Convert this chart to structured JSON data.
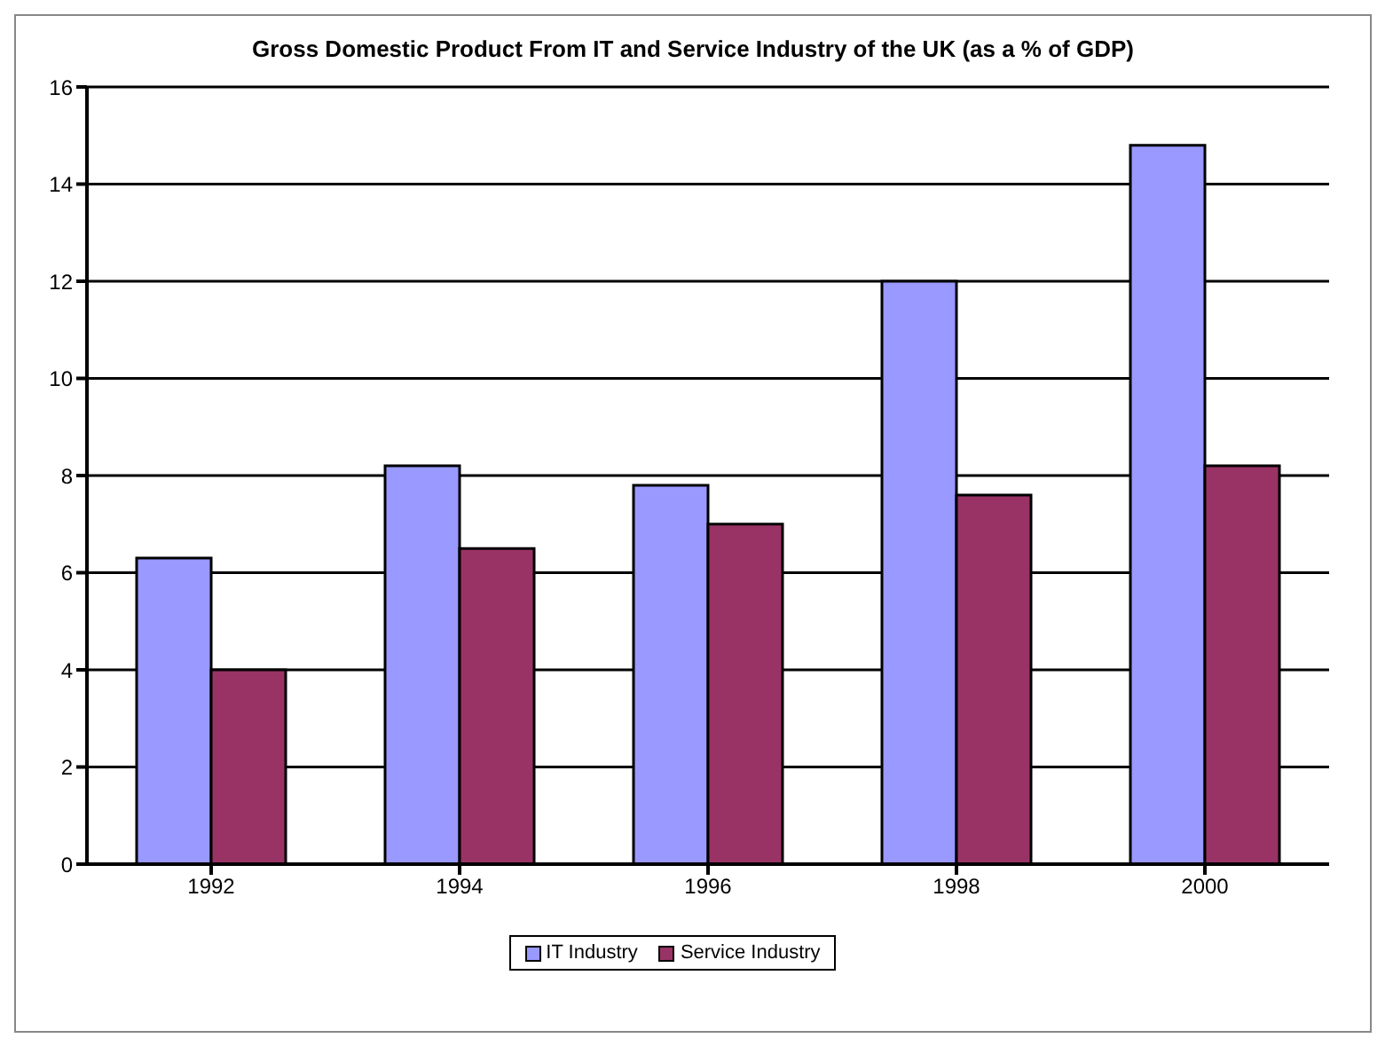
{
  "chart_data": {
    "type": "bar",
    "title": "Gross Domestic Product From IT and Service Industry of the UK (as a % of GDP)",
    "categories": [
      "1992",
      "1994",
      "1996",
      "1998",
      "2000"
    ],
    "series": [
      {
        "name": "IT Industry",
        "color": "#9999ff",
        "values": [
          6.3,
          8.2,
          7.8,
          12.0,
          14.8
        ]
      },
      {
        "name": "Service Industry",
        "color": "#993366",
        "values": [
          4.0,
          6.5,
          7.0,
          7.6,
          8.2
        ]
      }
    ],
    "ylim": [
      0,
      16
    ],
    "yticks": [
      0,
      2,
      4,
      6,
      8,
      10,
      12,
      14,
      16
    ],
    "grid": "y",
    "legend": "bottom"
  }
}
